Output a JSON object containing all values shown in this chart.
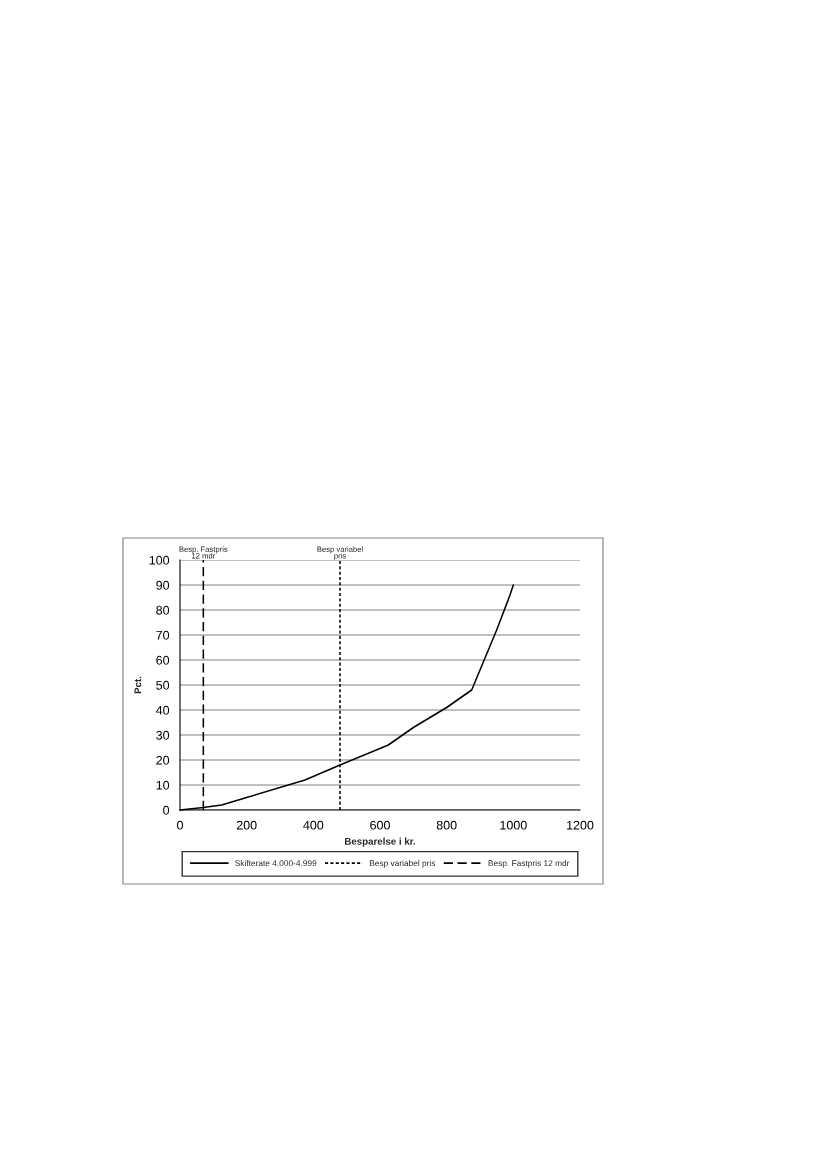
{
  "chart_data": {
    "type": "line",
    "xlabel": "Besparelse i kr.",
    "ylabel": "Pct.",
    "xlim": [
      0,
      1200
    ],
    "xticks": [
      0,
      200,
      400,
      600,
      800,
      1000,
      1200
    ],
    "ylim": [
      0,
      100
    ],
    "yticks": [
      0,
      10,
      20,
      30,
      40,
      50,
      60,
      70,
      80,
      90,
      100
    ],
    "grid": "y",
    "legend": "bottom",
    "series": [
      {
        "name": "Skifterate 4.000-4.999",
        "color": "#000000",
        "line_style": "solid",
        "x": [
          0,
          70,
          125,
          200,
          375,
          480,
          625,
          700,
          800,
          875,
          950,
          990,
          1000
        ],
        "values": [
          0,
          1,
          2,
          5,
          12,
          18,
          26,
          33,
          41,
          48,
          72,
          86,
          90
        ]
      },
      {
        "name": "Besp variabel pris",
        "color": "#000000",
        "line_style": "dotted",
        "x": [
          480,
          480
        ],
        "values": [
          0,
          100
        ]
      },
      {
        "name": "Besp. Fastpris 12 mdr",
        "color": "#000000",
        "line_style": "dashed",
        "x": [
          70,
          70
        ],
        "values": [
          0,
          100
        ]
      }
    ],
    "annotations": [
      {
        "text": "Besp. Fastpris\n12 mdr",
        "x": 70,
        "y": 100
      },
      {
        "text": "Besp variabel\npris",
        "x": 480,
        "y": 100
      }
    ]
  }
}
